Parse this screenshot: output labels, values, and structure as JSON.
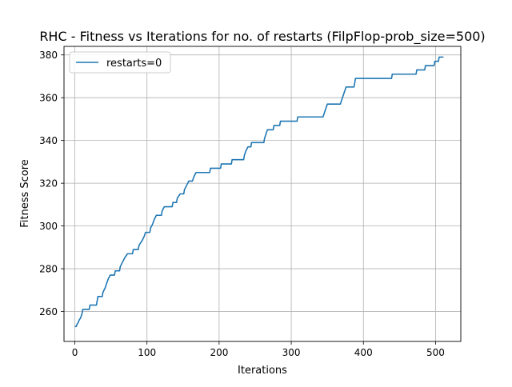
{
  "chart_data": {
    "type": "line",
    "title": "RHC - Fitness vs Iterations for no. of restarts (FilpFlop-prob_size=500)",
    "xlabel": "Iterations",
    "ylabel": "Fitness Score",
    "xlim": [
      -15,
      535
    ],
    "ylim": [
      246,
      384
    ],
    "xticks": [
      0,
      100,
      200,
      300,
      400,
      500
    ],
    "yticks": [
      260,
      280,
      300,
      320,
      340,
      360,
      380
    ],
    "grid": true,
    "legend_position": "upper-left",
    "series": [
      {
        "name": "restarts=0",
        "color": "#1f77b4",
        "points": [
          [
            0,
            253
          ],
          [
            2,
            253
          ],
          [
            3,
            254
          ],
          [
            5,
            255
          ],
          [
            6,
            256
          ],
          [
            8,
            257
          ],
          [
            10,
            259
          ],
          [
            11,
            261
          ],
          [
            20,
            261
          ],
          [
            21,
            263
          ],
          [
            30,
            263
          ],
          [
            31,
            265
          ],
          [
            32,
            267
          ],
          [
            38,
            267
          ],
          [
            39,
            269
          ],
          [
            42,
            271
          ],
          [
            44,
            273
          ],
          [
            46,
            275
          ],
          [
            49,
            277
          ],
          [
            55,
            277
          ],
          [
            56,
            279
          ],
          [
            62,
            279
          ],
          [
            63,
            281
          ],
          [
            66,
            283
          ],
          [
            69,
            285
          ],
          [
            73,
            287
          ],
          [
            80,
            287
          ],
          [
            81,
            289
          ],
          [
            88,
            289
          ],
          [
            89,
            291
          ],
          [
            93,
            293
          ],
          [
            96,
            295
          ],
          [
            98,
            297
          ],
          [
            104,
            297
          ],
          [
            105,
            299
          ],
          [
            108,
            301
          ],
          [
            110,
            303
          ],
          [
            113,
            305
          ],
          [
            120,
            305
          ],
          [
            121,
            307
          ],
          [
            124,
            309
          ],
          [
            135,
            309
          ],
          [
            136,
            311
          ],
          [
            141,
            311
          ],
          [
            142,
            313
          ],
          [
            146,
            315
          ],
          [
            151,
            315
          ],
          [
            152,
            317
          ],
          [
            155,
            319
          ],
          [
            158,
            321
          ],
          [
            163,
            321
          ],
          [
            165,
            323
          ],
          [
            168,
            325
          ],
          [
            187,
            325
          ],
          [
            188,
            327
          ],
          [
            202,
            327
          ],
          [
            203,
            329
          ],
          [
            217,
            329
          ],
          [
            218,
            331
          ],
          [
            234,
            331
          ],
          [
            235,
            333
          ],
          [
            237,
            335
          ],
          [
            240,
            337
          ],
          [
            244,
            337
          ],
          [
            245,
            339
          ],
          [
            262,
            339
          ],
          [
            263,
            341
          ],
          [
            265,
            343
          ],
          [
            267,
            345
          ],
          [
            275,
            345
          ],
          [
            276,
            347
          ],
          [
            284,
            347
          ],
          [
            285,
            349
          ],
          [
            308,
            349
          ],
          [
            309,
            351
          ],
          [
            344,
            351
          ],
          [
            346,
            353
          ],
          [
            348,
            355
          ],
          [
            350,
            357
          ],
          [
            368,
            357
          ],
          [
            370,
            359
          ],
          [
            372,
            361
          ],
          [
            374,
            363
          ],
          [
            376,
            365
          ],
          [
            387,
            365
          ],
          [
            388,
            367
          ],
          [
            389,
            369
          ],
          [
            439,
            369
          ],
          [
            440,
            371
          ],
          [
            473,
            371
          ],
          [
            474,
            373
          ],
          [
            485,
            373
          ],
          [
            486,
            375
          ],
          [
            498,
            375
          ],
          [
            499,
            377
          ],
          [
            504,
            377
          ],
          [
            505,
            379
          ],
          [
            511,
            379
          ]
        ]
      }
    ]
  }
}
